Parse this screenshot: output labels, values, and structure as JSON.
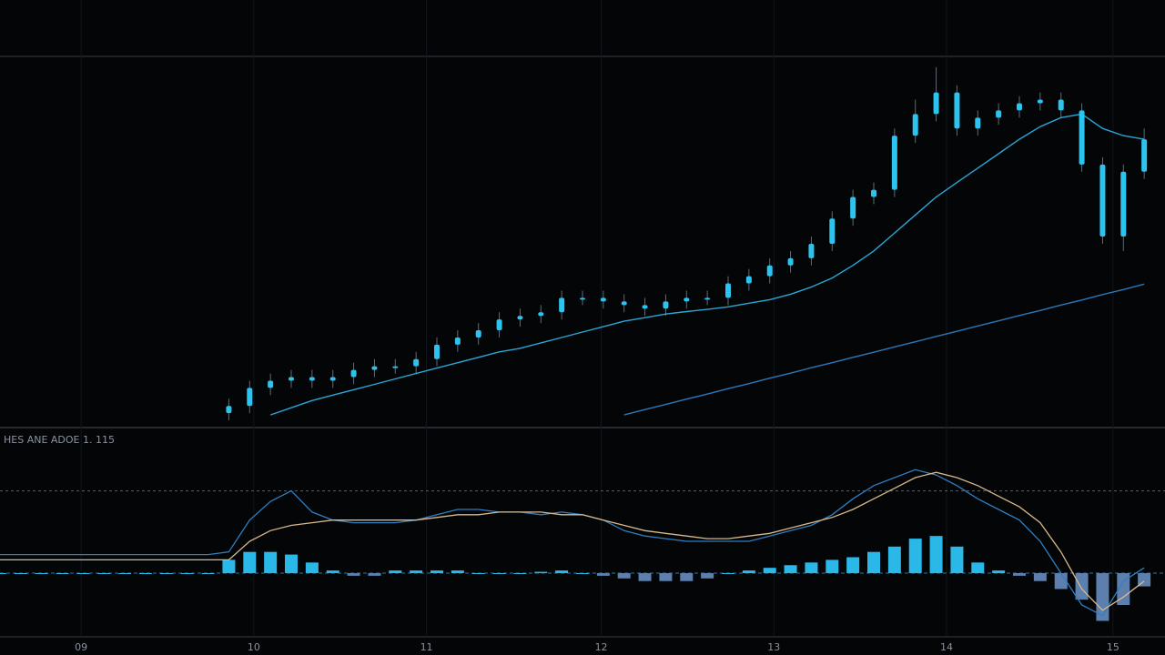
{
  "chart_data": [
    {
      "type": "candlestick",
      "x": [
        0,
        1,
        2,
        3,
        4,
        5,
        6,
        7,
        8,
        9,
        10,
        11,
        12,
        13,
        14,
        15,
        16,
        17,
        18,
        19,
        20,
        21,
        22,
        23,
        24,
        25,
        26,
        27,
        28,
        29,
        30,
        31,
        32,
        33,
        34,
        35,
        36,
        37,
        38,
        39,
        40,
        41,
        42,
        43,
        44
      ],
      "open": [
        1,
        3,
        8,
        10,
        11,
        10,
        11,
        13,
        14,
        14,
        16,
        20,
        22,
        24,
        27,
        28,
        29,
        33,
        33,
        32,
        31,
        30,
        32,
        33,
        33,
        37,
        39,
        42,
        44,
        48,
        55,
        61,
        63,
        78,
        84,
        90,
        80,
        83,
        85,
        87,
        88,
        85,
        70,
        50,
        68
      ],
      "high": [
        5,
        10,
        12,
        13,
        13,
        13,
        15,
        16,
        16,
        18,
        22,
        24,
        26,
        29,
        30,
        31,
        35,
        35,
        35,
        34,
        33,
        34,
        35,
        35,
        39,
        41,
        44,
        46,
        50,
        57,
        63,
        65,
        80,
        88,
        97,
        92,
        85,
        87,
        89,
        90,
        90,
        87,
        72,
        70,
        80
      ],
      "low": [
        -1,
        1,
        6,
        8,
        8,
        8,
        9,
        11,
        12,
        12,
        14,
        18,
        20,
        22,
        25,
        26,
        27,
        31,
        30,
        29,
        28,
        28,
        30,
        31,
        31,
        35,
        37,
        40,
        42,
        46,
        53,
        59,
        61,
        76,
        82,
        78,
        78,
        81,
        83,
        85,
        83,
        68,
        48,
        46,
        66
      ],
      "close": [
        3,
        8,
        10,
        11,
        10,
        11,
        13,
        14,
        14,
        16,
        20,
        22,
        24,
        27,
        28,
        29,
        33,
        33,
        32,
        31,
        30,
        32,
        33,
        33,
        37,
        39,
        42,
        44,
        48,
        55,
        61,
        63,
        78,
        84,
        90,
        80,
        83,
        85,
        87,
        88,
        85,
        70,
        50,
        68,
        77
      ],
      "color": "#2cc3ee",
      "series": [
        {
          "color": "#2aa6d6",
          "values": [
            null,
            null,
            0.5,
            2.5,
            4.5,
            6,
            7.5,
            9,
            10.5,
            12,
            13.5,
            15,
            16.5,
            18,
            19,
            20.5,
            22,
            23.5,
            25,
            26.5,
            27.5,
            28.5,
            29.2,
            29.8,
            30.5,
            31.5,
            32.5,
            34,
            36,
            38.5,
            42,
            46,
            51,
            56,
            61,
            65,
            69,
            73,
            77,
            80.5,
            83,
            84,
            80,
            78,
            77
          ]
        },
        {
          "color": "#2a78b8",
          "values": [
            null,
            null,
            null,
            null,
            null,
            null,
            null,
            null,
            null,
            null,
            null,
            null,
            null,
            null,
            null,
            null,
            null,
            null,
            null,
            0.5,
            2,
            3.4,
            4.9,
            6.3,
            7.8,
            9.2,
            10.7,
            12.1,
            13.6,
            15,
            16.5,
            17.9,
            19.4,
            20.8,
            22.3,
            23.7,
            25.2,
            26.6,
            28.1,
            29.5,
            31,
            32.4,
            33.9,
            35.3,
            36.8
          ]
        }
      ],
      "xlim": [
        -11,
        45
      ],
      "ylim": [
        -3,
        100
      ]
    },
    {
      "type": "macd",
      "title": "HES ANE ADOE 1. 115",
      "x": [
        -11,
        -10,
        -9,
        -8,
        -7,
        -6,
        -5,
        -4,
        -3,
        -2,
        -1,
        0,
        1,
        2,
        3,
        4,
        5,
        6,
        7,
        8,
        9,
        10,
        11,
        12,
        13,
        14,
        15,
        16,
        17,
        18,
        19,
        20,
        21,
        22,
        23,
        24,
        25,
        26,
        27,
        28,
        29,
        30,
        31,
        32,
        33,
        34,
        35,
        36,
        37,
        38,
        39,
        40,
        41,
        42,
        43,
        44
      ],
      "histogram": {
        "color": "#2ab8e8",
        "negative_color": "#5d7fae",
        "values": [
          0,
          0,
          0,
          0,
          0,
          0,
          0,
          0,
          0,
          0,
          0,
          0.5,
          0.8,
          0.8,
          0.7,
          0.4,
          0.1,
          -0.1,
          -0.1,
          0.1,
          0.1,
          0.1,
          0.1,
          0,
          0,
          0,
          0.05,
          0.1,
          0,
          -0.1,
          -0.2,
          -0.3,
          -0.3,
          -0.3,
          -0.2,
          0,
          0.1,
          0.2,
          0.3,
          0.4,
          0.5,
          0.6,
          0.8,
          1.0,
          1.3,
          1.4,
          1.0,
          0.4,
          0.1,
          -0.1,
          -0.3,
          -0.6,
          -1.0,
          -1.8,
          -1.2,
          -0.5
        ]
      },
      "series": [
        {
          "color": "#2f7fc0",
          "values": [
            0.7,
            0.7,
            0.7,
            0.7,
            0.7,
            0.7,
            0.7,
            0.7,
            0.7,
            0.7,
            0.7,
            0.8,
            2.0,
            2.7,
            3.1,
            2.3,
            2.0,
            1.9,
            1.9,
            1.9,
            2.0,
            2.2,
            2.4,
            2.4,
            2.3,
            2.3,
            2.2,
            2.3,
            2.2,
            2.0,
            1.6,
            1.4,
            1.3,
            1.2,
            1.2,
            1.2,
            1.2,
            1.4,
            1.6,
            1.8,
            2.2,
            2.8,
            3.3,
            3.6,
            3.9,
            3.7,
            3.3,
            2.8,
            2.4,
            2.0,
            1.2,
            0,
            -1.2,
            -1.6,
            -0.3,
            0.2
          ]
        },
        {
          "color": "#d9b98a",
          "values": [
            0.5,
            0.5,
            0.5,
            0.5,
            0.5,
            0.5,
            0.5,
            0.5,
            0.5,
            0.5,
            0.5,
            0.5,
            1.2,
            1.6,
            1.8,
            1.9,
            2.0,
            2.0,
            2.0,
            2.0,
            2.0,
            2.1,
            2.2,
            2.2,
            2.3,
            2.3,
            2.3,
            2.2,
            2.2,
            2.0,
            1.8,
            1.6,
            1.5,
            1.4,
            1.3,
            1.3,
            1.4,
            1.5,
            1.7,
            1.9,
            2.1,
            2.4,
            2.8,
            3.2,
            3.6,
            3.8,
            3.6,
            3.3,
            2.9,
            2.5,
            1.9,
            0.8,
            -0.6,
            -1.4,
            -0.9,
            -0.3
          ]
        }
      ],
      "reference_line": 3.1,
      "xlim": [
        -11,
        45
      ],
      "ylim": [
        -2.4,
        4.8
      ],
      "xticks": [
        {
          "value": -7.1,
          "label": "09"
        },
        {
          "value": 1.2,
          "label": "10"
        },
        {
          "value": 9.5,
          "label": "11"
        },
        {
          "value": 17.9,
          "label": "12"
        },
        {
          "value": 26.2,
          "label": "13"
        },
        {
          "value": 34.5,
          "label": "14"
        },
        {
          "value": 42.5,
          "label": "15"
        }
      ]
    }
  ]
}
